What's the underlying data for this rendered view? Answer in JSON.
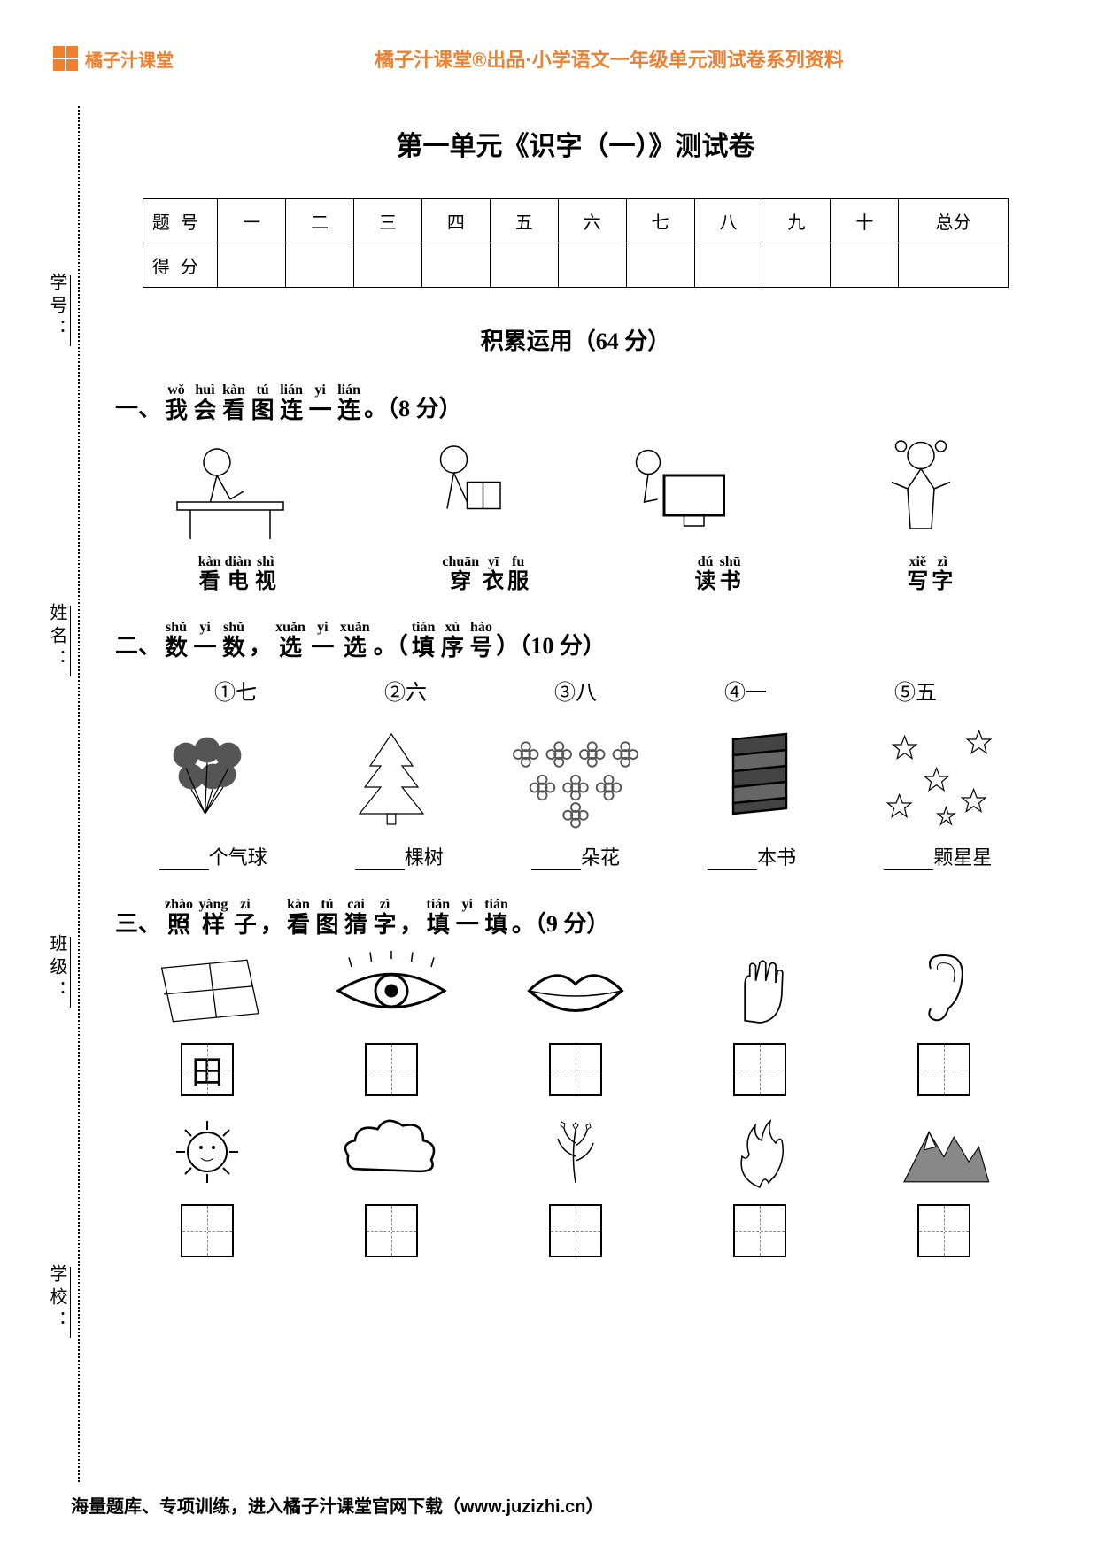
{
  "header": {
    "brand": "橘子汁课堂",
    "subtitle": "橘子汁课堂®出品·小学语文一年级单元测试卷系列资料"
  },
  "side_labels": [
    "学号：",
    "姓名：",
    "班级：",
    "学校："
  ],
  "title": "第一单元《识字（一）》测试卷",
  "score_table": {
    "row1_label": "题号",
    "row2_label": "得分",
    "cols": [
      "一",
      "二",
      "三",
      "四",
      "五",
      "六",
      "七",
      "八",
      "九",
      "十",
      "总分"
    ]
  },
  "section_heading": "积累运用（64 分）",
  "q1": {
    "prefix": "一、",
    "ruby": [
      {
        "py": "wǒ",
        "hz": "我"
      },
      {
        "py": "huì",
        "hz": "会"
      },
      {
        "py": "kàn",
        "hz": "看"
      },
      {
        "py": "tú",
        "hz": "图"
      },
      {
        "py": "lián",
        "hz": "连"
      },
      {
        "py": "yi",
        "hz": "一"
      },
      {
        "py": "lián",
        "hz": "连"
      }
    ],
    "suffix": "。（8 分）",
    "labels": [
      [
        {
          "py": "kàn",
          "hz": "看"
        },
        {
          "py": "diàn",
          "hz": "电"
        },
        {
          "py": "shì",
          "hz": "视"
        }
      ],
      [
        {
          "py": "chuān",
          "hz": "穿"
        },
        {
          "py": "yī",
          "hz": "衣"
        },
        {
          "py": "fu",
          "hz": "服"
        }
      ],
      [
        {
          "py": "dú",
          "hz": "读"
        },
        {
          "py": "shū",
          "hz": "书"
        }
      ],
      [
        {
          "py": "xiě",
          "hz": "写"
        },
        {
          "py": "zì",
          "hz": "字"
        }
      ]
    ]
  },
  "q2": {
    "prefix": "二、",
    "ruby": [
      {
        "py": "shǔ",
        "hz": "数"
      },
      {
        "py": "yi",
        "hz": "一"
      },
      {
        "py": "shǔ",
        "hz": "数"
      }
    ],
    "mid1": "，",
    "ruby2": [
      {
        "py": "xuǎn",
        "hz": "选"
      },
      {
        "py": "yi",
        "hz": "一"
      },
      {
        "py": "xuǎn",
        "hz": "选"
      }
    ],
    "mid2": "。（",
    "ruby3": [
      {
        "py": "tián",
        "hz": "填"
      },
      {
        "py": "xù",
        "hz": "序"
      },
      {
        "py": "hào",
        "hz": "号"
      }
    ],
    "suffix": "）（10 分）",
    "options": [
      "①七",
      "②六",
      "③八",
      "④一",
      "⑤五"
    ],
    "fills": [
      "个气球",
      "棵树",
      "朵花",
      "本书",
      "颗星星"
    ]
  },
  "q3": {
    "prefix": "三、",
    "ruby": [
      {
        "py": "zhào",
        "hz": "照"
      },
      {
        "py": "yàng",
        "hz": "样"
      },
      {
        "py": "zi",
        "hz": "子"
      }
    ],
    "mid1": "，",
    "ruby2": [
      {
        "py": "kàn",
        "hz": "看"
      },
      {
        "py": "tú",
        "hz": "图"
      },
      {
        "py": "cāi",
        "hz": "猜"
      },
      {
        "py": "zì",
        "hz": "字"
      }
    ],
    "mid2": "，",
    "ruby3": [
      {
        "py": "tián",
        "hz": "填"
      },
      {
        "py": "yi",
        "hz": "一"
      },
      {
        "py": "tián",
        "hz": "填"
      }
    ],
    "suffix": "。（9 分）",
    "example_char": "田"
  },
  "footer": "海量题库、专项训练，进入橘子汁课堂官网下载（www.juzizhi.cn）"
}
